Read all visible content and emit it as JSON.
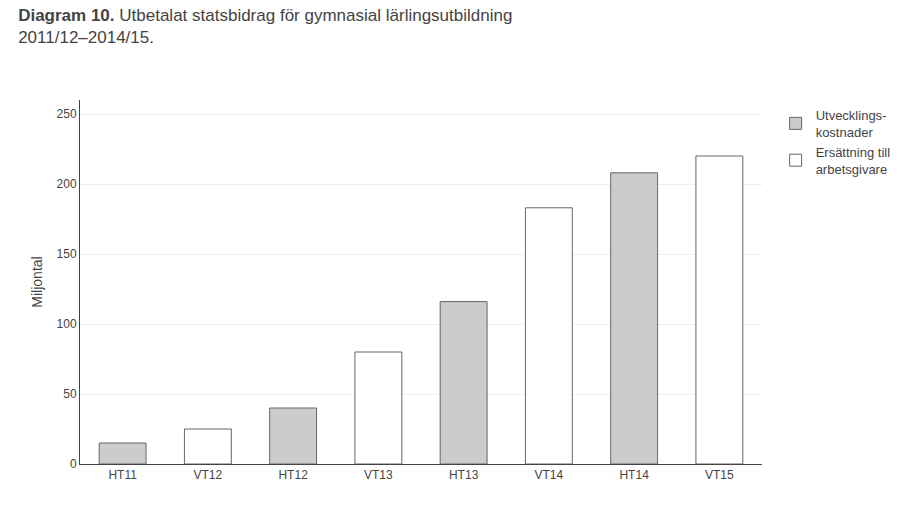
{
  "chart_data": {
    "type": "bar",
    "title": "Diagram 10.",
    "subtitle": "Utbetalat statsbidrag för gymnasial lärlingsutbildning\n2011/12–2014/15.",
    "ylabel": "Miljontal",
    "categories": [
      "HT11",
      "VT12",
      "HT12",
      "VT13",
      "HT13",
      "VT14",
      "HT14",
      "VT15"
    ],
    "series": [
      {
        "name": "Utvecklings-\nkostnader",
        "color": "#cccccc",
        "values": [
          15,
          null,
          40,
          null,
          116,
          null,
          208,
          null
        ]
      },
      {
        "name": "Ersättning till\narbetsgivare",
        "color": "#ffffff",
        "values": [
          null,
          25,
          null,
          80,
          null,
          183,
          null,
          220
        ]
      }
    ],
    "ylim": [
      0,
      260
    ],
    "yticks": [
      0,
      50,
      100,
      150,
      200,
      250
    ],
    "grid": true,
    "legend": "right"
  }
}
